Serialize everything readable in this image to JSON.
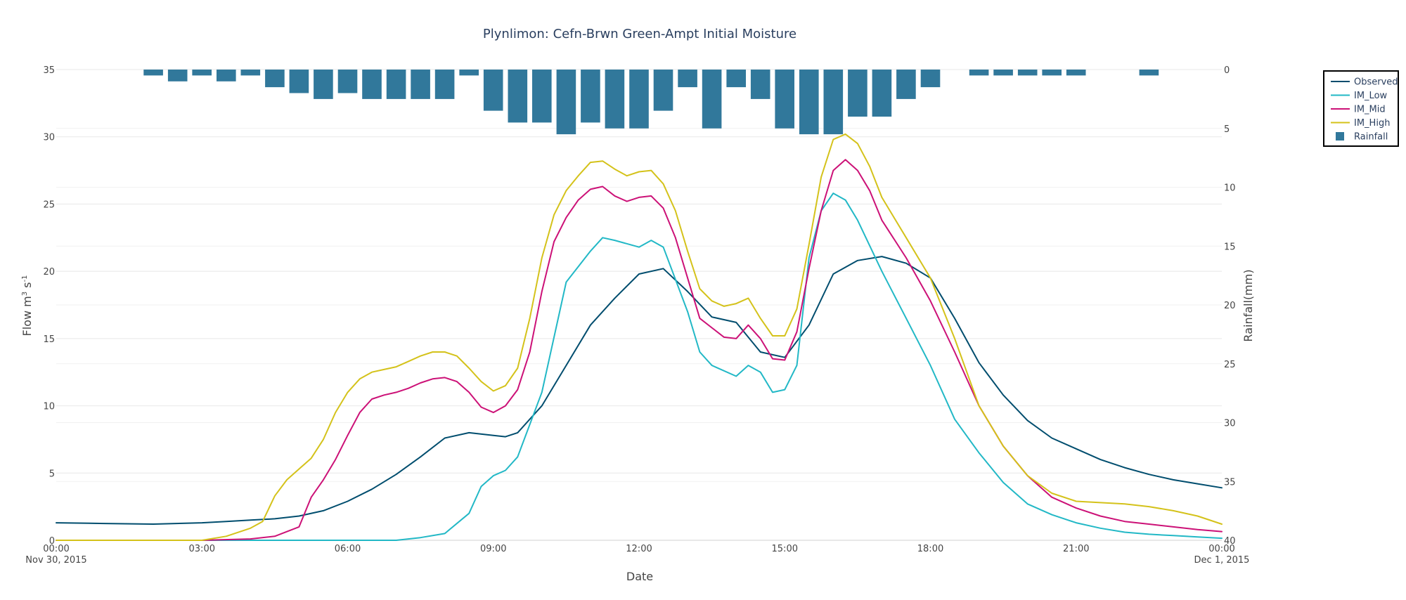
{
  "chart_data": {
    "type": "line",
    "title": "Plynlimon: Cefn-Brwn Green-Ampt Initial Moisture",
    "xlabel": "Date",
    "ylabel_main": "Flow m",
    "ylabel_sup1": "3",
    "ylabel_mid": " s",
    "ylabel_sup2": "-1",
    "y2label": "Rainfall(mm)",
    "x_range_hours": [
      0,
      24
    ],
    "ylim": [
      0,
      35
    ],
    "y2lim": [
      0,
      40
    ],
    "y2_reversed": true,
    "x_ticks": [
      {
        "h": 0,
        "label": "00:00",
        "sub": "Nov 30, 2015"
      },
      {
        "h": 3,
        "label": "03:00",
        "sub": ""
      },
      {
        "h": 6,
        "label": "06:00",
        "sub": ""
      },
      {
        "h": 9,
        "label": "09:00",
        "sub": ""
      },
      {
        "h": 12,
        "label": "12:00",
        "sub": ""
      },
      {
        "h": 15,
        "label": "15:00",
        "sub": ""
      },
      {
        "h": 18,
        "label": "18:00",
        "sub": ""
      },
      {
        "h": 21,
        "label": "21:00",
        "sub": ""
      },
      {
        "h": 24,
        "label": "00:00",
        "sub": "Dec 1, 2015"
      }
    ],
    "y_ticks": [
      0,
      5,
      10,
      15,
      20,
      25,
      30,
      35
    ],
    "y2_ticks": [
      0,
      5,
      10,
      15,
      20,
      25,
      30,
      35,
      40
    ],
    "grid": true,
    "legend_position": "top-right",
    "rainfall": {
      "name": "Rainfall",
      "color": "#31789b",
      "bar_width_h": 0.4,
      "x": [
        2,
        2.5,
        3,
        3.5,
        4,
        4.5,
        5,
        5.5,
        6,
        6.5,
        7,
        7.5,
        8,
        8.5,
        9,
        9.5,
        10,
        10.5,
        11,
        11.5,
        12,
        12.5,
        13,
        13.5,
        14,
        14.5,
        15,
        15.5,
        16,
        16.5,
        17,
        17.5,
        18,
        19,
        19.5,
        20,
        20.5,
        21,
        22.5
      ],
      "values": [
        0.5,
        1,
        0.5,
        1,
        0.5,
        1.5,
        2,
        2.5,
        2,
        2.5,
        2.5,
        2.5,
        2.5,
        0.5,
        3.5,
        4.5,
        4.5,
        5.5,
        4.5,
        5,
        5,
        3.5,
        1.5,
        5,
        1.5,
        2.5,
        5,
        5.5,
        5.5,
        4,
        4,
        2.5,
        1.5,
        0.5,
        0.5,
        0.5,
        0.5,
        0.5,
        0.5
      ]
    },
    "series": [
      {
        "name": "Observed",
        "color": "#004d6e",
        "x": [
          0,
          1,
          2,
          3,
          3.5,
          4,
          4.5,
          5,
          5.5,
          6,
          6.5,
          7,
          7.5,
          8,
          8.5,
          9,
          9.25,
          9.5,
          10,
          10.5,
          11,
          11.5,
          12,
          12.5,
          13,
          13.5,
          14,
          14.5,
          15,
          15.5,
          16,
          16.5,
          17,
          17.5,
          18,
          18.5,
          19,
          19.5,
          20,
          20.5,
          21,
          21.5,
          22,
          22.5,
          23,
          23.5,
          24
        ],
        "values": [
          1.3,
          1.25,
          1.2,
          1.3,
          1.4,
          1.5,
          1.6,
          1.8,
          2.2,
          2.9,
          3.8,
          4.9,
          6.2,
          7.6,
          8.0,
          7.8,
          7.7,
          8.0,
          10.0,
          13.0,
          16.0,
          18.0,
          19.8,
          20.2,
          18.5,
          16.6,
          16.2,
          14.0,
          13.6,
          16.0,
          19.8,
          20.8,
          21.1,
          20.6,
          19.5,
          16.5,
          13.2,
          10.8,
          8.9,
          7.6,
          6.8,
          6.0,
          5.4,
          4.9,
          4.5,
          4.2,
          3.9
        ]
      },
      {
        "name": "IM_Low",
        "color": "#22b8c6",
        "x": [
          0,
          6,
          7,
          7.5,
          8,
          8.5,
          8.75,
          9,
          9.25,
          9.5,
          10,
          10.5,
          11,
          11.25,
          11.5,
          12,
          12.25,
          12.5,
          13,
          13.25,
          13.5,
          14,
          14.25,
          14.5,
          14.75,
          15,
          15.25,
          15.5,
          15.75,
          16,
          16.25,
          16.5,
          17,
          17.5,
          18,
          18.5,
          19,
          19.5,
          20,
          20.5,
          21,
          21.5,
          22,
          22.5,
          23,
          23.5,
          24
        ],
        "values": [
          0,
          0,
          0,
          0.2,
          0.5,
          2.0,
          4.0,
          4.8,
          5.2,
          6.2,
          11.0,
          19.2,
          21.5,
          22.5,
          22.3,
          21.8,
          22.3,
          21.8,
          17.0,
          14.0,
          13.0,
          12.2,
          13.0,
          12.5,
          11.0,
          11.2,
          13.0,
          21.0,
          24.5,
          25.8,
          25.3,
          23.8,
          20.0,
          16.5,
          13.0,
          9.0,
          6.5,
          4.3,
          2.7,
          1.9,
          1.3,
          0.9,
          0.6,
          0.45,
          0.35,
          0.25,
          0.15
        ]
      },
      {
        "name": "IM_Mid",
        "color": "#cc1177",
        "x": [
          0,
          3,
          4,
          4.5,
          5,
          5.25,
          5.5,
          5.75,
          6,
          6.25,
          6.5,
          6.75,
          7,
          7.25,
          7.5,
          7.75,
          8,
          8.25,
          8.5,
          8.75,
          9,
          9.25,
          9.5,
          9.75,
          10,
          10.25,
          10.5,
          10.75,
          11,
          11.25,
          11.5,
          11.75,
          12,
          12.25,
          12.5,
          12.75,
          13,
          13.25,
          13.5,
          13.75,
          14,
          14.25,
          14.5,
          14.75,
          15,
          15.25,
          15.5,
          15.75,
          16,
          16.25,
          16.5,
          16.75,
          17,
          17.5,
          18,
          18.5,
          19,
          19.5,
          20,
          20.5,
          21,
          21.5,
          22,
          22.5,
          23,
          23.5,
          24
        ],
        "values": [
          0,
          0,
          0.1,
          0.3,
          1.0,
          3.2,
          4.5,
          6.0,
          7.8,
          9.5,
          10.5,
          10.8,
          11.0,
          11.3,
          11.7,
          12.0,
          12.1,
          11.8,
          11.0,
          9.9,
          9.5,
          10.0,
          11.2,
          14.0,
          18.5,
          22.2,
          24.0,
          25.3,
          26.1,
          26.3,
          25.6,
          25.2,
          25.5,
          25.6,
          24.7,
          22.5,
          19.5,
          16.5,
          15.8,
          15.1,
          15.0,
          16.0,
          15.0,
          13.5,
          13.4,
          15.5,
          20.2,
          24.5,
          27.5,
          28.3,
          27.5,
          26.0,
          23.8,
          21.0,
          17.8,
          14.0,
          10.0,
          7.0,
          4.8,
          3.2,
          2.4,
          1.8,
          1.4,
          1.2,
          1.0,
          0.8,
          0.65
        ]
      },
      {
        "name": "IM_High",
        "color": "#d4c21a",
        "x": [
          0,
          3,
          3.5,
          4,
          4.25,
          4.5,
          4.75,
          5,
          5.25,
          5.5,
          5.75,
          6,
          6.25,
          6.5,
          6.75,
          7,
          7.25,
          7.5,
          7.75,
          8,
          8.25,
          8.5,
          8.75,
          9,
          9.25,
          9.5,
          9.75,
          10,
          10.25,
          10.5,
          10.75,
          11,
          11.25,
          11.5,
          11.75,
          12,
          12.25,
          12.5,
          12.75,
          13,
          13.25,
          13.5,
          13.75,
          14,
          14.25,
          14.5,
          14.75,
          15,
          15.25,
          15.5,
          15.75,
          16,
          16.25,
          16.5,
          16.75,
          17,
          17.5,
          18,
          18.5,
          19,
          19.5,
          20,
          20.5,
          21,
          21.5,
          22,
          22.5,
          23,
          23.5,
          24
        ],
        "values": [
          0,
          0,
          0.3,
          0.9,
          1.4,
          3.3,
          4.5,
          5.3,
          6.1,
          7.5,
          9.5,
          11.0,
          12.0,
          12.5,
          12.7,
          12.9,
          13.3,
          13.7,
          14.0,
          14.0,
          13.7,
          12.8,
          11.8,
          11.1,
          11.5,
          12.8,
          16.5,
          21.0,
          24.2,
          26.0,
          27.1,
          28.1,
          28.2,
          27.6,
          27.1,
          27.4,
          27.5,
          26.5,
          24.5,
          21.5,
          18.7,
          17.8,
          17.4,
          17.6,
          18.0,
          16.5,
          15.2,
          15.2,
          17.2,
          22.0,
          27.0,
          29.8,
          30.2,
          29.5,
          27.8,
          25.5,
          22.5,
          19.5,
          15.0,
          10.0,
          7.0,
          4.8,
          3.5,
          2.9,
          2.8,
          2.7,
          2.5,
          2.2,
          1.8,
          1.2
        ]
      }
    ],
    "legend_entries": [
      "Observed",
      "IM_Low",
      "IM_Mid",
      "IM_High",
      "Rainfall"
    ]
  }
}
